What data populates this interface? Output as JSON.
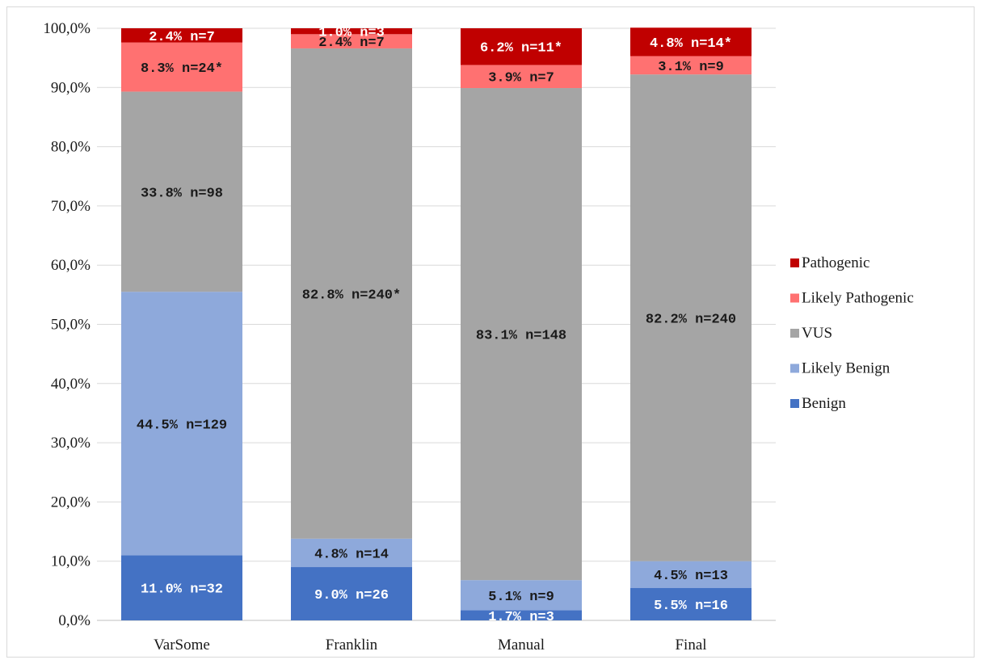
{
  "chart_data": {
    "type": "bar",
    "stacked": true,
    "percent": true,
    "categories": [
      "VarSome",
      "Franklin",
      "Manual",
      "Final"
    ],
    "ylim": [
      0,
      100
    ],
    "yticks": [
      "0,0%",
      "10,0%",
      "20,0%",
      "30,0%",
      "40,0%",
      "50,0%",
      "60,0%",
      "70,0%",
      "80,0%",
      "90,0%",
      "100,0%"
    ],
    "grid": true,
    "legend_position": "right",
    "series": [
      {
        "name": "Benign",
        "color": "#4472C4",
        "label_color": "#ffffff",
        "values": [
          11.0,
          9.0,
          1.7,
          5.5
        ],
        "labels": [
          "11.0% n=32",
          "9.0% n=26",
          "1.7% n=3",
          "5.5% n=16"
        ]
      },
      {
        "name": "Likely Benign",
        "color": "#8EA9DB",
        "label_color": "#1a1a1a",
        "values": [
          44.5,
          4.8,
          5.1,
          4.5
        ],
        "labels": [
          "44.5% n=129",
          "4.8% n=14",
          "5.1% n=9",
          "4.5% n=13"
        ]
      },
      {
        "name": "VUS",
        "color": "#A5A5A5",
        "label_color": "#1a1a1a",
        "values": [
          33.8,
          82.8,
          83.1,
          82.2
        ],
        "labels": [
          "33.8% n=98",
          "82.8% n=240*",
          "83.1% n=148",
          "82.2% n=240"
        ]
      },
      {
        "name": "Likely Pathogenic",
        "color": "#FF7171",
        "label_color": "#1a1a1a",
        "values": [
          8.3,
          2.4,
          3.9,
          3.1
        ],
        "labels": [
          "8.3% n=24*",
          "2.4% n=7",
          "3.9% n=7",
          "3.1% n=9"
        ]
      },
      {
        "name": "Pathogenic",
        "color": "#C00000",
        "label_color": "#ffffff",
        "values": [
          2.4,
          1.0,
          6.2,
          4.8
        ],
        "labels": [
          "2.4% n=7",
          "1.0% n=3",
          "6.2% n=11*",
          "4.8% n=14*"
        ]
      }
    ],
    "legend_order": [
      "Pathogenic",
      "Likely Pathogenic",
      "VUS",
      "Likely Benign",
      "Benign"
    ]
  }
}
